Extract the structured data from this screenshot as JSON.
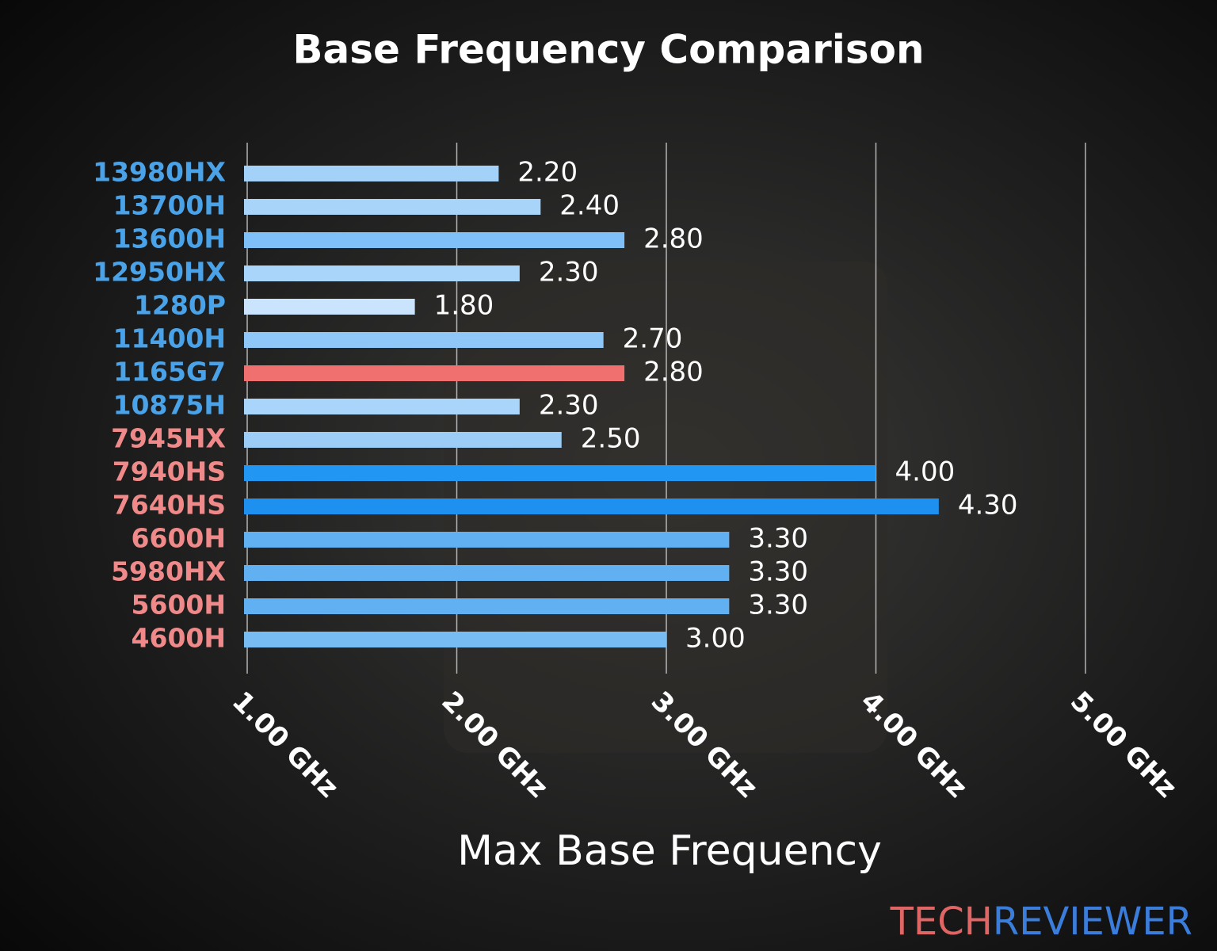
{
  "chart_data": {
    "type": "barh",
    "title": "Base Frequency Comparison",
    "x_label": "Max Base Frequency",
    "categories": [
      "13980HX",
      "13700H",
      "13600H",
      "12950HX",
      "1280P",
      "11400H",
      "1165G7",
      "10875H",
      "7945HX",
      "7940HS",
      "7640HS",
      "6600H",
      "5980HX",
      "5600H",
      "4600H"
    ],
    "values": [
      2.2,
      2.4,
      2.8,
      2.3,
      1.8,
      2.7,
      2.8,
      2.3,
      2.5,
      4.0,
      4.3,
      3.3,
      3.3,
      3.3,
      3.0
    ],
    "value_labels": [
      "2.20",
      "2.40",
      "2.80",
      "2.30",
      "1.80",
      "2.70",
      "2.80",
      "2.30",
      "2.50",
      "4.00",
      "4.30",
      "3.30",
      "3.30",
      "3.30",
      "3.00"
    ],
    "colors": [
      "#a3d1f8",
      "#a8d4fa",
      "#7fc0f8",
      "#a9d5fa",
      "#c9e4fc",
      "#8ec7f8",
      "#f07070",
      "#a9d5fa",
      "#9ccdf7",
      "#2196f3",
      "#1e90f0",
      "#60b0f2",
      "#60b0f2",
      "#60b0f2",
      "#78bcf4"
    ],
    "category_colors": [
      "#4aa3e8",
      "#4aa3e8",
      "#4aa3e8",
      "#4aa3e8",
      "#4aa3e8",
      "#4aa3e8",
      "#4aa3e8",
      "#4aa3e8",
      "#f08a8a",
      "#f08a8a",
      "#f08a8a",
      "#f08a8a",
      "#f08a8a",
      "#f08a8a",
      "#f08a8a"
    ],
    "xlim": [
      1,
      5
    ],
    "xticks": [
      {
        "value": 1,
        "label": "1.00 GHz"
      },
      {
        "value": 2,
        "label": "2.00 GHz"
      },
      {
        "value": 3,
        "label": "3.00 GHz"
      },
      {
        "value": 4,
        "label": "4.00 GHz"
      },
      {
        "value": 5,
        "label": "5.00 GHz"
      }
    ],
    "grid": true
  },
  "watermark": {
    "part1": "TECH",
    "part2": "REVIEWER"
  }
}
